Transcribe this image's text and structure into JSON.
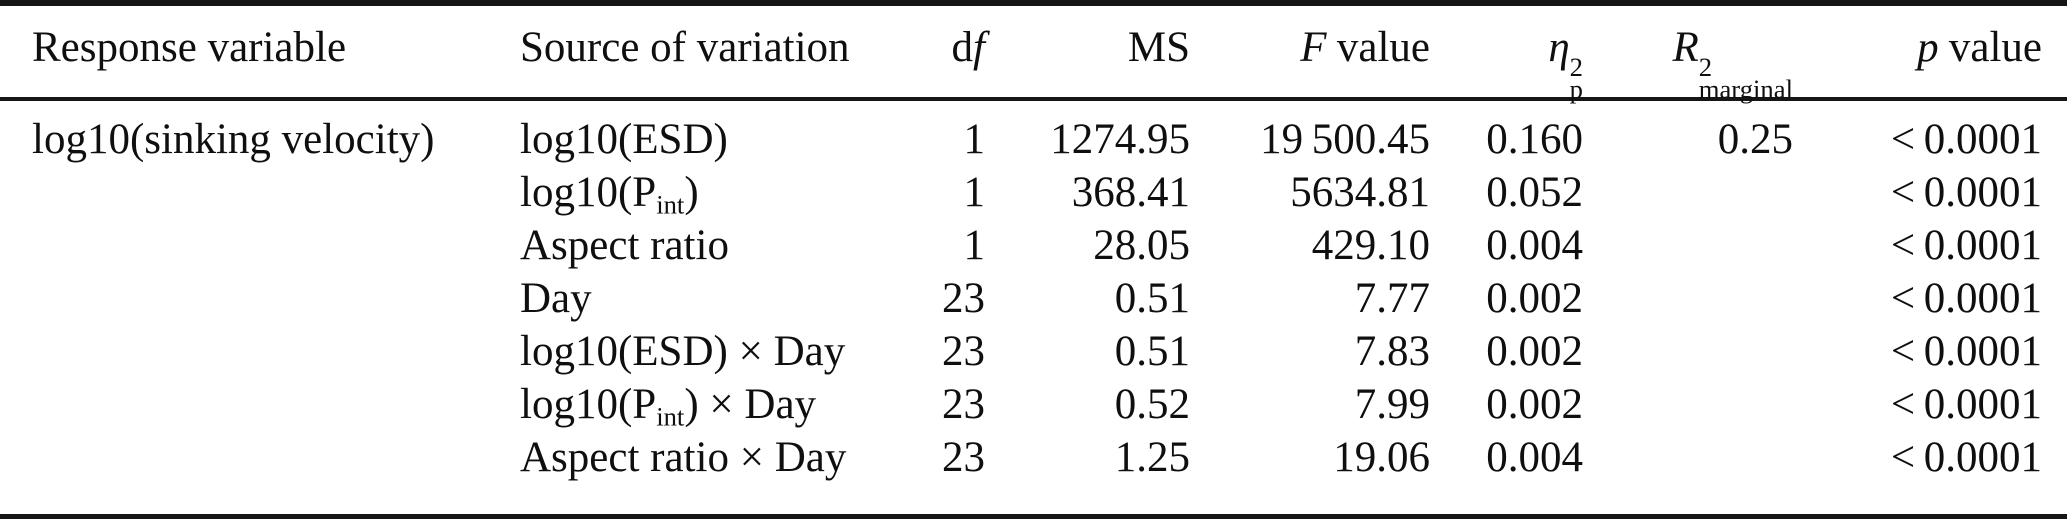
{
  "table": {
    "headers": {
      "response": "Response variable",
      "source": "Source of variation",
      "df": {
        "roman": "d",
        "italic": "f"
      },
      "ms": "MS",
      "f": {
        "symbol": "F",
        "rest": "value"
      },
      "eta": {
        "symbol": "η",
        "sup": "2",
        "sub": "p"
      },
      "r2": {
        "symbol": "R",
        "sup": "2",
        "sub": "marginal"
      },
      "p": {
        "symbol": "p",
        "rest": "value"
      }
    },
    "rows": [
      {
        "response": "log10(sinking velocity)",
        "source": {
          "pre": "log10(ESD)"
        },
        "df": "1",
        "ms": "1274.95",
        "f": "19 500.45",
        "eta": "0.160",
        "r2": "0.25",
        "p": "< 0.0001"
      },
      {
        "response": "",
        "source": {
          "pre": "log10(P",
          "sub": "int",
          "post": ")"
        },
        "df": "1",
        "ms": "368.41",
        "f": "5634.81",
        "eta": "0.052",
        "r2": "",
        "p": "< 0.0001"
      },
      {
        "response": "",
        "source": {
          "pre": "Aspect ratio"
        },
        "df": "1",
        "ms": "28.05",
        "f": "429.10",
        "eta": "0.004",
        "r2": "",
        "p": "< 0.0001"
      },
      {
        "response": "",
        "source": {
          "pre": "Day"
        },
        "df": "23",
        "ms": "0.51",
        "f": "7.77",
        "eta": "0.002",
        "r2": "",
        "p": "< 0.0001"
      },
      {
        "response": "",
        "source": {
          "pre": "log10(ESD) × Day"
        },
        "df": "23",
        "ms": "0.51",
        "f": "7.83",
        "eta": "0.002",
        "r2": "",
        "p": "< 0.0001"
      },
      {
        "response": "",
        "source": {
          "pre": "log10(P",
          "sub": "int",
          "post": ") × Day"
        },
        "df": "23",
        "ms": "0.52",
        "f": "7.99",
        "eta": "0.002",
        "r2": "",
        "p": "< 0.0001"
      },
      {
        "response": "",
        "source": {
          "pre": "Aspect ratio × Day"
        },
        "df": "23",
        "ms": "1.25",
        "f": "19.06",
        "eta": "0.004",
        "r2": "",
        "p": "< 0.0001"
      }
    ]
  }
}
